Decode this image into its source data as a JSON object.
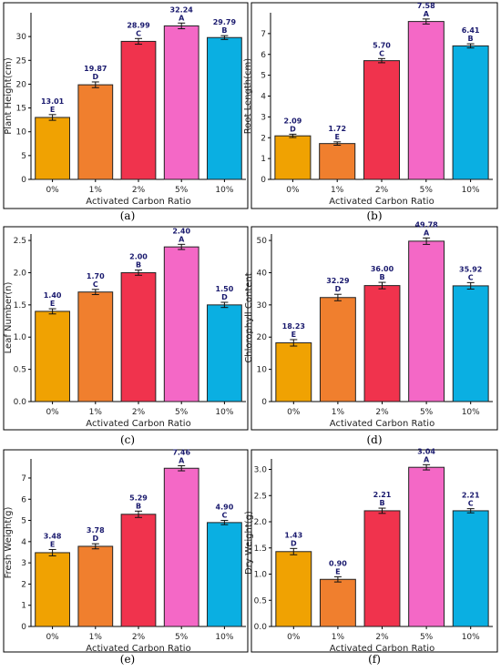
{
  "colors": {
    "0%": "#f0a202",
    "1%": "#f07f2e",
    "2%": "#f0334d",
    "5%": "#f468c6",
    "10%": "#0aafe2",
    "value_label": "#1a1a6e"
  },
  "chart_data": [
    {
      "type": "bar",
      "panel_label": "(a)",
      "categories": [
        "0%",
        "1%",
        "2%",
        "5%",
        "10%"
      ],
      "values": [
        13.01,
        19.87,
        28.99,
        32.24,
        29.79
      ],
      "value_labels": [
        "13.01",
        "19.87",
        "28.99",
        "32.24",
        "29.79"
      ],
      "letters": [
        "E",
        "D",
        "C",
        "A",
        "B"
      ],
      "errors": [
        0.6,
        0.6,
        0.6,
        0.6,
        0.4
      ],
      "xlabel": "Activated Carbon Ratio",
      "ylabel": "Plant Height(cm)",
      "ylim": [
        0,
        35
      ],
      "yticks": [
        0,
        5,
        10,
        15,
        20,
        25,
        30
      ],
      "ytick_labels": [
        "0",
        "5",
        "10",
        "15",
        "20",
        "25",
        "30"
      ]
    },
    {
      "type": "bar",
      "panel_label": "(b)",
      "categories": [
        "0%",
        "1%",
        "2%",
        "5%",
        "10%"
      ],
      "values": [
        2.09,
        1.72,
        5.7,
        7.58,
        6.41
      ],
      "value_labels": [
        "2.09",
        "1.72",
        "5.70",
        "7.58",
        "6.41"
      ],
      "letters": [
        "D",
        "E",
        "C",
        "A",
        "B"
      ],
      "errors": [
        0.08,
        0.08,
        0.1,
        0.12,
        0.1
      ],
      "xlabel": "Activated Carbon Ratio",
      "ylabel": "Root Length(cm)",
      "ylim": [
        0,
        8
      ],
      "yticks": [
        0,
        1,
        2,
        3,
        4,
        5,
        6,
        7
      ],
      "ytick_labels": [
        "0",
        "1",
        "2",
        "3",
        "4",
        "5",
        "6",
        "7"
      ]
    },
    {
      "type": "bar",
      "panel_label": "(c)",
      "categories": [
        "0%",
        "1%",
        "2%",
        "5%",
        "10%"
      ],
      "values": [
        1.4,
        1.7,
        2.0,
        2.4,
        1.5
      ],
      "value_labels": [
        "1.40",
        "1.70",
        "2.00",
        "2.40",
        "1.50"
      ],
      "letters": [
        "E",
        "C",
        "B",
        "A",
        "D"
      ],
      "errors": [
        0.04,
        0.04,
        0.04,
        0.04,
        0.04
      ],
      "xlabel": "Activated Carbon Ratio",
      "ylabel": "Leaf Number(n)",
      "ylim": [
        0,
        2.6
      ],
      "yticks": [
        0,
        0.5,
        1.0,
        1.5,
        2.0,
        2.5
      ],
      "ytick_labels": [
        "0.0",
        "0.5",
        "1.0",
        "1.5",
        "2.0",
        "2.5"
      ]
    },
    {
      "type": "bar",
      "panel_label": "(d)",
      "categories": [
        "0%",
        "1%",
        "2%",
        "5%",
        "10%"
      ],
      "values": [
        18.23,
        32.29,
        36.0,
        49.78,
        35.92
      ],
      "value_labels": [
        "18.23",
        "32.29",
        "36.00",
        "49.78",
        "35.92"
      ],
      "letters": [
        "E",
        "D",
        "B",
        "A",
        "C"
      ],
      "errors": [
        1.0,
        1.0,
        1.0,
        1.0,
        1.0
      ],
      "xlabel": "Activated Carbon Ratio",
      "ylabel": "Chlorophyll Content",
      "ylim": [
        0,
        52
      ],
      "yticks": [
        0,
        10,
        20,
        30,
        40,
        50
      ],
      "ytick_labels": [
        "0",
        "10",
        "20",
        "30",
        "40",
        "50"
      ]
    },
    {
      "type": "bar",
      "panel_label": "(e)",
      "categories": [
        "0%",
        "1%",
        "2%",
        "5%",
        "10%"
      ],
      "values": [
        3.48,
        3.78,
        5.29,
        7.46,
        4.9
      ],
      "value_labels": [
        "3.48",
        "3.78",
        "5.29",
        "7.46",
        "4.90"
      ],
      "letters": [
        "E",
        "D",
        "B",
        "A",
        "C"
      ],
      "errors": [
        0.15,
        0.12,
        0.15,
        0.12,
        0.1
      ],
      "xlabel": "Activated Carbon Ratio",
      "ylabel": "Fresh Weight(g)",
      "ylim": [
        0,
        7.9
      ],
      "yticks": [
        0,
        1,
        2,
        3,
        4,
        5,
        6,
        7
      ],
      "ytick_labels": [
        "0",
        "1",
        "2",
        "3",
        "4",
        "5",
        "6",
        "7"
      ]
    },
    {
      "type": "bar",
      "panel_label": "(f)",
      "categories": [
        "0%",
        "1%",
        "2%",
        "5%",
        "10%"
      ],
      "values": [
        1.43,
        0.9,
        2.21,
        3.04,
        2.21
      ],
      "value_labels": [
        "1.43",
        "0.90",
        "2.21",
        "3.04",
        "2.21"
      ],
      "letters": [
        "D",
        "E",
        "B",
        "A",
        "C"
      ],
      "errors": [
        0.06,
        0.05,
        0.05,
        0.05,
        0.04
      ],
      "xlabel": "Activated Carbon Ratio",
      "ylabel": "Dry Weight(g)",
      "ylim": [
        0,
        3.2
      ],
      "yticks": [
        0,
        0.5,
        1.0,
        1.5,
        2.0,
        2.5,
        3.0
      ],
      "ytick_labels": [
        "0.0",
        "0.5",
        "1.0",
        "1.5",
        "2.0",
        "2.5",
        "3.0"
      ]
    }
  ]
}
